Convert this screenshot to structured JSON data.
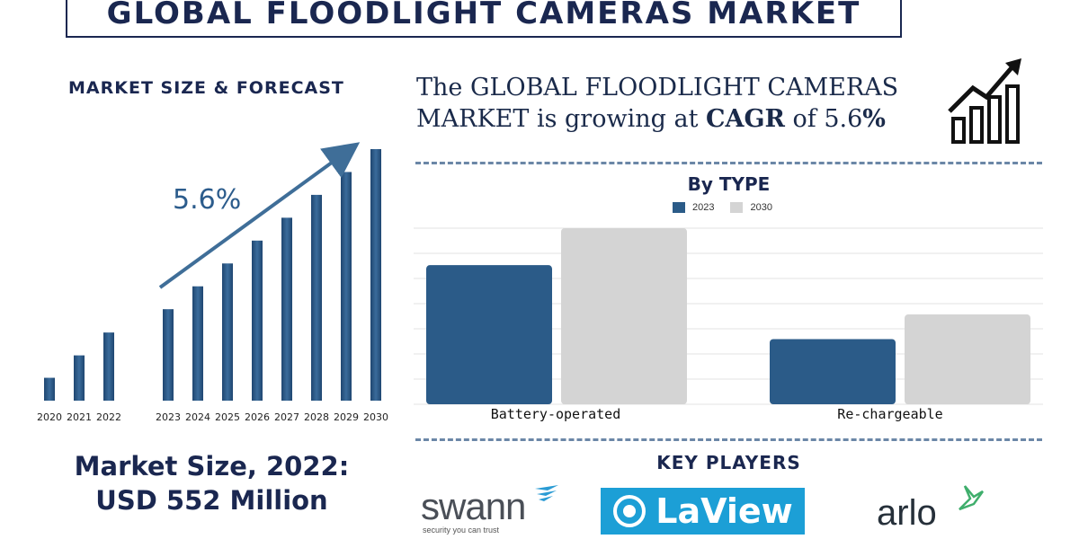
{
  "title": "GLOBAL FLOODLIGHT CAMERAS MARKET",
  "left_panel": {
    "subtitle": "MARKET SIZE & FORECAST",
    "cagr_label": "5.6%",
    "market_size_line1": "Market Size, 2022:",
    "market_size_line2": "USD 552 Million"
  },
  "headline": {
    "part1": "The GLOBAL FLOODLIGHT CAMERAS MARKET is growing at ",
    "cagr_word": "CAGR",
    "part2": " of 5.6",
    "percent": "%"
  },
  "key_players": {
    "title": "KEY PLAYERS",
    "logos": [
      {
        "name": "swann",
        "tagline": "security you can trust"
      },
      {
        "name": "LaView"
      },
      {
        "name": "arlo"
      }
    ]
  },
  "colors": {
    "navy": "#1a2750",
    "bar_blue": "#2b5b88",
    "bar_grey": "#d4d4d4",
    "arrow": "#3f6e98"
  },
  "chart_data": [
    {
      "type": "bar",
      "title": "MARKET SIZE & FORECAST",
      "categories": [
        "2020",
        "2021",
        "2022",
        "2023",
        "2024",
        "2025",
        "2026",
        "2027",
        "2028",
        "2029",
        "2030"
      ],
      "values": [
        100,
        198,
        298,
        400,
        500,
        600,
        700,
        800,
        900,
        1000,
        1100
      ],
      "annotation": "5.6%",
      "ylim": [
        0,
        1100
      ]
    },
    {
      "type": "bar",
      "title": "By TYPE",
      "categories": [
        "Battery-operated",
        "Re-chargeable"
      ],
      "series": [
        {
          "name": "2023",
          "values": [
            79,
            37
          ]
        },
        {
          "name": "2030",
          "values": [
            100,
            51
          ]
        }
      ],
      "ylim": [
        0,
        100
      ],
      "grid": true,
      "legend": "top-center"
    }
  ]
}
